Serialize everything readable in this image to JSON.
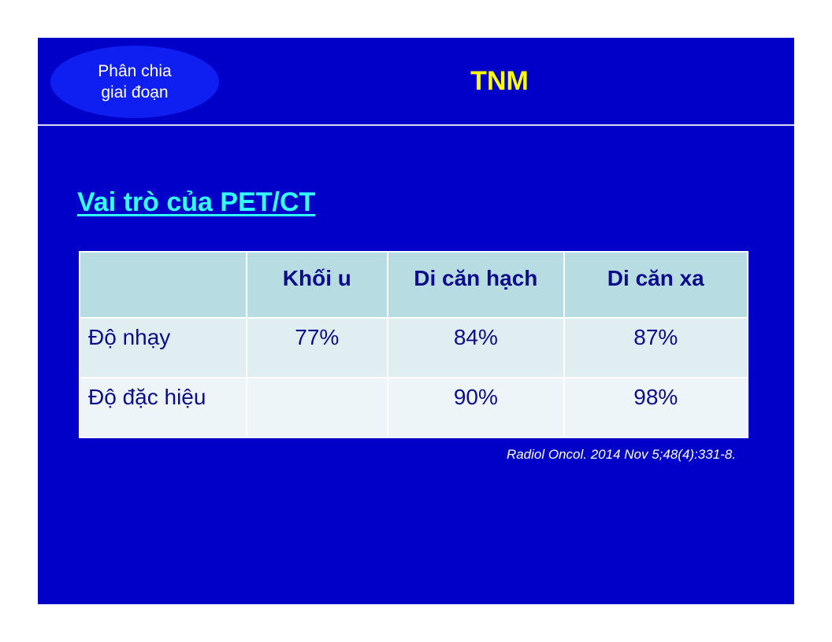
{
  "badge": {
    "line1": "Phân chia",
    "line2": "giai đoạn"
  },
  "title": "TNM",
  "heading": "Vai trò của PET/CT",
  "table": {
    "headers": [
      "",
      "Khối u",
      "Di căn hạch",
      "Di căn xa"
    ],
    "rows": [
      {
        "label": "Độ nhạy",
        "values": [
          "77%",
          "84%",
          "87%"
        ]
      },
      {
        "label": "Độ đặc hiệu",
        "values": [
          "",
          "90%",
          "98%"
        ]
      }
    ]
  },
  "citation": "Radiol Oncol. 2014 Nov 5;48(4):331-8.",
  "colors": {
    "slide_bg": "#0000c8",
    "title": "#ffff00",
    "heading": "#33ffff",
    "table_text": "#0d0d8c"
  }
}
